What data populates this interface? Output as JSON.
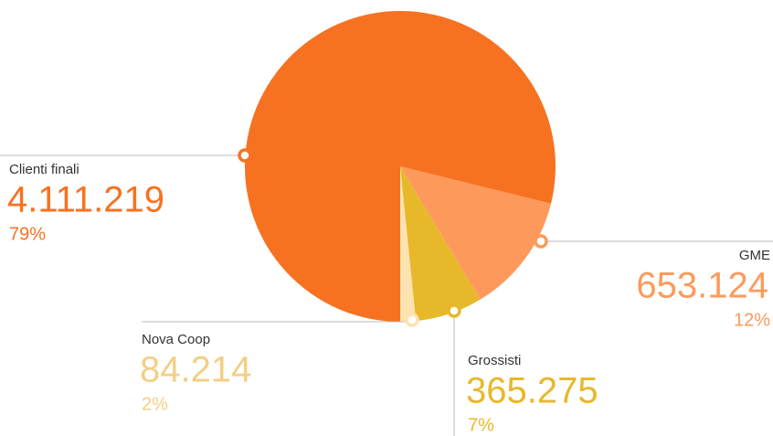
{
  "chart_data": {
    "type": "pie",
    "categories": [
      "Clienti finali",
      "GME",
      "Grossisti",
      "Nova Coop"
    ],
    "values": [
      4111219,
      653124,
      365275,
      84214
    ],
    "value_labels": [
      "4.111.219",
      "653.124",
      "365.275",
      "84.214"
    ],
    "shares": [
      79,
      12,
      7,
      2
    ],
    "share_labels": [
      "79%",
      "12%",
      "7%",
      "2%"
    ],
    "colors": [
      "#f77220",
      "#fd9a5b",
      "#e8b82b",
      "#fce3b0"
    ]
  }
}
